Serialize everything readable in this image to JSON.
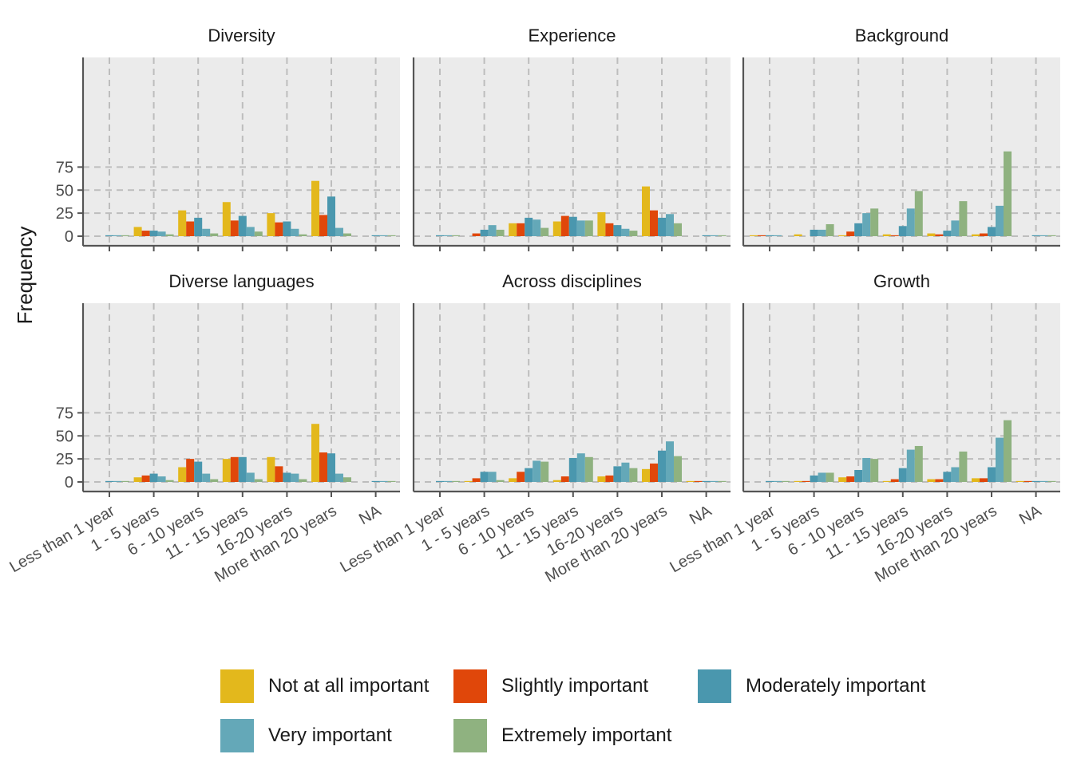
{
  "chart_data": {
    "type": "bar",
    "ylabel": "Frequency",
    "ylim": [
      0,
      100
    ],
    "yticks": [
      0,
      25,
      50,
      75
    ],
    "categories": [
      "Less than 1 year",
      "1 - 5 years",
      "6 - 10 years",
      "11 - 15 years",
      "16-20 years",
      "More than 20 years",
      "NA"
    ],
    "series_names": [
      "Not at all important",
      "Slightly important",
      "Moderately important",
      "Very important",
      "Extremely important"
    ],
    "colors": [
      "#E3B81C",
      "#E0470A",
      "#4A97AE",
      "#64A8B8",
      "#8FB280"
    ],
    "grid": true,
    "legend_placement": "bottom",
    "panels": [
      {
        "title": "Diversity",
        "values": [
          [
            0,
            0,
            1,
            1,
            1
          ],
          [
            10,
            6,
            6,
            5,
            2
          ],
          [
            28,
            16,
            20,
            8,
            3
          ],
          [
            37,
            17,
            22,
            10,
            5
          ],
          [
            25,
            15,
            16,
            8,
            2
          ],
          [
            60,
            23,
            43,
            9,
            3
          ],
          [
            0,
            0,
            1,
            1,
            1
          ]
        ]
      },
      {
        "title": "Experience",
        "values": [
          [
            0,
            0,
            1,
            1,
            1
          ],
          [
            0,
            3,
            7,
            12,
            7
          ],
          [
            14,
            14,
            20,
            18,
            9
          ],
          [
            16,
            22,
            21,
            17,
            17
          ],
          [
            26,
            14,
            12,
            8,
            6
          ],
          [
            54,
            28,
            20,
            24,
            14
          ],
          [
            0,
            0,
            1,
            1,
            1
          ]
        ]
      },
      {
        "title": "Background",
        "values": [
          [
            1,
            1,
            1,
            1,
            0
          ],
          [
            2,
            0,
            7,
            7,
            13
          ],
          [
            1,
            5,
            14,
            25,
            30
          ],
          [
            2,
            1,
            11,
            30,
            49
          ],
          [
            3,
            2,
            6,
            17,
            38
          ],
          [
            2,
            3,
            10,
            33,
            92
          ],
          [
            0,
            0,
            1,
            1,
            1
          ]
        ]
      },
      {
        "title": "Diverse languages",
        "values": [
          [
            0,
            0,
            1,
            1,
            1
          ],
          [
            5,
            7,
            9,
            6,
            2
          ],
          [
            16,
            25,
            22,
            9,
            3
          ],
          [
            25,
            27,
            27,
            10,
            3
          ],
          [
            27,
            17,
            10,
            9,
            3
          ],
          [
            63,
            32,
            31,
            9,
            5
          ],
          [
            0,
            0,
            1,
            1,
            1
          ]
        ]
      },
      {
        "title": "Across disciplines",
        "values": [
          [
            0,
            0,
            1,
            1,
            1
          ],
          [
            1,
            4,
            11,
            11,
            2
          ],
          [
            4,
            11,
            15,
            23,
            22
          ],
          [
            2,
            6,
            26,
            31,
            27
          ],
          [
            6,
            7,
            17,
            21,
            15
          ],
          [
            14,
            20,
            34,
            44,
            28
          ],
          [
            1,
            1,
            1,
            1,
            1
          ]
        ]
      },
      {
        "title": "Growth",
        "values": [
          [
            0,
            0,
            1,
            1,
            1
          ],
          [
            1,
            1,
            7,
            10,
            10
          ],
          [
            5,
            6,
            13,
            26,
            25
          ],
          [
            1,
            3,
            15,
            35,
            39
          ],
          [
            3,
            3,
            11,
            16,
            33
          ],
          [
            4,
            4,
            16,
            48,
            67
          ],
          [
            1,
            1,
            1,
            1,
            1
          ]
        ]
      }
    ]
  }
}
